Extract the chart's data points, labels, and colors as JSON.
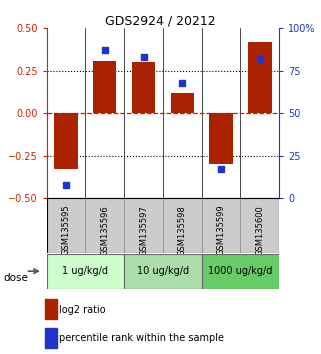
{
  "title": "GDS2924 / 20212",
  "samples": [
    "GSM135595",
    "GSM135596",
    "GSM135597",
    "GSM135598",
    "GSM135599",
    "GSM135600"
  ],
  "log2_ratio": [
    -0.33,
    0.31,
    0.3,
    0.12,
    -0.3,
    0.42
  ],
  "percentile_rank": [
    8,
    87,
    83,
    68,
    17,
    82
  ],
  "ylim_left": [
    -0.5,
    0.5
  ],
  "ylim_right": [
    0,
    100
  ],
  "yticks_left": [
    -0.5,
    -0.25,
    0,
    0.25,
    0.5
  ],
  "yticks_right": [
    0,
    25,
    50,
    75,
    100
  ],
  "hlines_dotted": [
    -0.25,
    0.25
  ],
  "bar_color": "#aa2200",
  "dot_color": "#2233cc",
  "sample_box_color": "#cccccc",
  "dose_groups": [
    {
      "label": "1 ug/kg/d",
      "columns": [
        0,
        1
      ],
      "color": "#ccffcc"
    },
    {
      "label": "10 ug/kg/d",
      "columns": [
        2,
        3
      ],
      "color": "#aaddaa"
    },
    {
      "label": "1000 ug/kg/d",
      "columns": [
        4,
        5
      ],
      "color": "#66cc66"
    }
  ],
  "dose_label": "dose",
  "legend_bar_label": "log2 ratio",
  "legend_dot_label": "percentile rank within the sample",
  "left_axis_color": "#cc2200",
  "right_axis_color": "#2233cc"
}
